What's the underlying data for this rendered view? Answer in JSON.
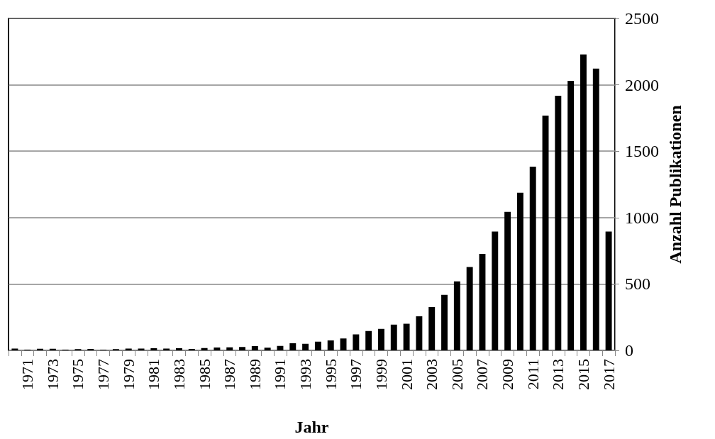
{
  "chart_data": {
    "type": "bar",
    "xlabel": "Jahr",
    "y2label": "Anzahl Publikationen",
    "categories": [
      null,
      "1971",
      null,
      "1973",
      null,
      "1975",
      null,
      "1977",
      null,
      "1979",
      null,
      "1981",
      null,
      "1983",
      null,
      "1985",
      null,
      "1987",
      null,
      "1989",
      null,
      "1991",
      null,
      "1993",
      null,
      "1995",
      null,
      "1997",
      null,
      "1999",
      null,
      "2001",
      null,
      "2003",
      null,
      "2005",
      null,
      "2007",
      null,
      "2009",
      null,
      "2011",
      null,
      "2013",
      null,
      "2015",
      null,
      "2017"
    ],
    "series": [
      {
        "axis": "y2",
        "color": "#000000",
        "values": [
          14,
          5,
          12,
          12,
          5,
          9,
          11,
          4,
          9,
          14,
          14,
          16,
          14,
          16,
          11,
          18,
          21,
          23,
          25,
          32,
          20,
          34,
          53,
          50,
          66,
          75,
          89,
          120,
          146,
          161,
          193,
          200,
          257,
          326,
          418,
          520,
          628,
          726,
          895,
          1043,
          1187,
          1384,
          1768,
          1918,
          2030,
          2229,
          2122,
          895
        ]
      }
    ],
    "y2lim": [
      0,
      2500
    ],
    "y2ticks": [
      0,
      500,
      1000,
      1500,
      2000,
      2500
    ],
    "grid": "y2"
  }
}
